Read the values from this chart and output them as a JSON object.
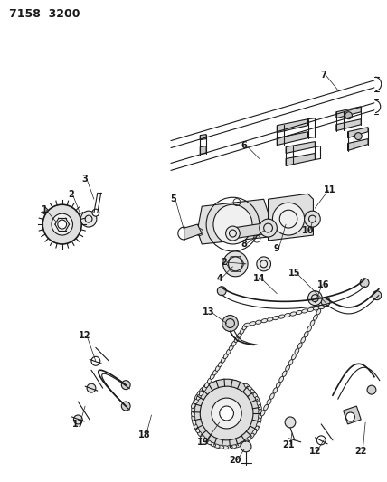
{
  "title": "7158  3200",
  "bg_color": "#ffffff",
  "line_color": "#1a1a1a",
  "title_fontsize": 9,
  "label_fontsize": 7,
  "fig_width": 4.28,
  "fig_height": 5.33,
  "dpi": 100
}
